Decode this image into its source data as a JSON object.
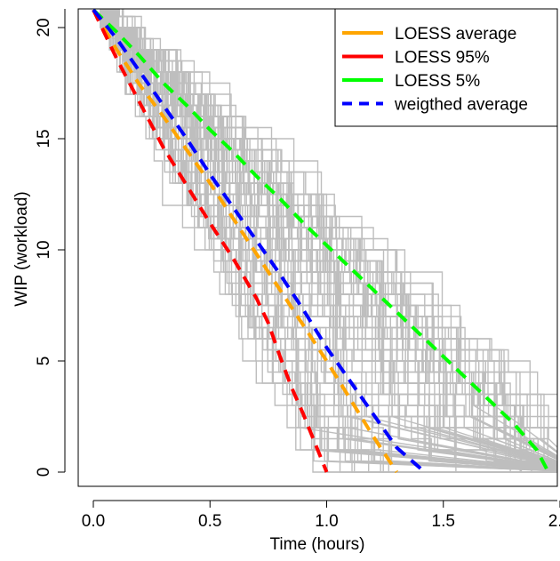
{
  "chart_data": {
    "type": "line",
    "title": "",
    "xlabel": "Time (hours)",
    "ylabel": "WIP (workload)",
    "xlim": [
      -0.07,
      2.0
    ],
    "ylim": [
      -0.6,
      20.8
    ],
    "x_ticks": [
      0.0,
      0.5,
      1.0,
      1.5,
      2.0
    ],
    "x_tick_labels": [
      "0.0",
      "0.5",
      "1.0",
      "1.5",
      "2.0"
    ],
    "y_ticks": [
      0,
      5,
      10,
      15,
      20
    ],
    "y_tick_labels": [
      "0",
      "5",
      "10",
      "15",
      "20"
    ],
    "grid": false,
    "legend_position": "top-right",
    "background_traces": {
      "color": "#BEBEBE",
      "count": 100,
      "description_start": 21,
      "end_time_range": [
        0.85,
        2.0
      ]
    },
    "series": [
      {
        "name": "LOESS average",
        "color": "#FFA500",
        "style": "solid",
        "x": [
          0.0,
          0.1,
          0.2,
          0.3,
          0.4,
          0.5,
          0.6,
          0.7,
          0.8,
          0.9,
          1.0,
          1.1,
          1.2,
          1.3
        ],
        "y": [
          20.8,
          19.0,
          17.4,
          16.0,
          14.5,
          13.0,
          11.4,
          9.8,
          8.2,
          6.6,
          5.0,
          3.3,
          1.6,
          0.0
        ]
      },
      {
        "name": "LOESS 95%",
        "color": "#FF0000",
        "style": "solid",
        "x": [
          0.0,
          0.1,
          0.2,
          0.3,
          0.4,
          0.5,
          0.6,
          0.7,
          0.75,
          0.8,
          0.85,
          0.9,
          0.95,
          1.0
        ],
        "y": [
          20.8,
          18.6,
          16.6,
          14.6,
          12.9,
          11.2,
          9.6,
          7.8,
          6.7,
          5.2,
          3.8,
          2.6,
          1.3,
          0.0
        ]
      },
      {
        "name": "LOESS 5%",
        "color": "#00FF00",
        "style": "solid",
        "x": [
          0.0,
          0.1,
          0.2,
          0.3,
          0.4,
          0.5,
          0.6,
          0.7,
          0.8,
          0.9,
          1.0,
          1.1,
          1.2,
          1.3,
          1.4,
          1.5,
          1.6,
          1.7,
          1.8,
          1.9,
          1.95
        ],
        "y": [
          20.8,
          19.8,
          18.7,
          17.5,
          16.5,
          15.4,
          14.4,
          13.3,
          12.3,
          11.2,
          10.2,
          9.2,
          8.2,
          7.2,
          6.2,
          5.2,
          4.2,
          3.2,
          2.2,
          1.0,
          0.0
        ]
      },
      {
        "name": "weigthed average",
        "color": "#0000FF",
        "style": "dashed",
        "x": [
          0.0,
          0.1,
          0.2,
          0.3,
          0.4,
          0.5,
          0.6,
          0.7,
          0.8,
          0.9,
          1.0,
          1.1,
          1.2,
          1.3,
          1.42
        ],
        "y": [
          20.8,
          19.5,
          18.0,
          16.5,
          15.0,
          13.4,
          11.9,
          10.4,
          8.9,
          7.3,
          5.6,
          4.1,
          2.6,
          1.1,
          0.0
        ]
      }
    ]
  }
}
